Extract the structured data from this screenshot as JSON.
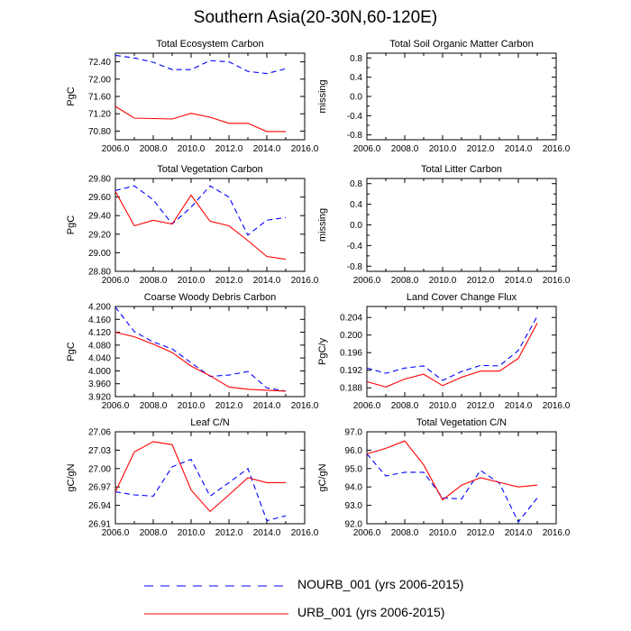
{
  "page_title": "Southern Asia(20-30N,60-120E)",
  "colors": {
    "nourb": "#0000ff",
    "urb": "#ff0000",
    "axis": "#000000"
  },
  "legend": [
    {
      "label": "NOURB_001 (yrs 2006-2015)",
      "color": "#0000ff",
      "style": "dashed"
    },
    {
      "label": "URB_001 (yrs 2006-2015)",
      "color": "#ff0000",
      "style": "solid"
    }
  ],
  "chart_data": [
    {
      "type": "line",
      "title": "Total Ecosystem Carbon",
      "ylabel": "PgC",
      "xlim": [
        2006,
        2016
      ],
      "ylim": [
        70.6,
        72.6
      ],
      "xticks": [
        2006,
        2008,
        2010,
        2012,
        2014,
        2016
      ],
      "xtick_labels": [
        "2006.0",
        "2008.0",
        "2010.0",
        "2012.0",
        "2014.0",
        "2016.0"
      ],
      "yticks": [
        70.8,
        71.2,
        71.6,
        72.0,
        72.4
      ],
      "ytick_labels": [
        "70.80",
        "71.20",
        "71.60",
        "72.00",
        "72.40"
      ],
      "x": [
        2006,
        2007,
        2008,
        2009,
        2010,
        2011,
        2012,
        2013,
        2014,
        2015
      ],
      "series": [
        {
          "name": "NOURB_001",
          "values": [
            72.55,
            72.49,
            72.39,
            72.22,
            72.22,
            72.43,
            72.4,
            72.18,
            72.13,
            72.24
          ]
        },
        {
          "name": "URB_001",
          "values": [
            71.37,
            71.1,
            71.09,
            71.08,
            71.21,
            71.12,
            70.98,
            70.98,
            70.79,
            70.79
          ]
        }
      ]
    },
    {
      "type": "line",
      "title": "Total Soil Organic Matter Carbon",
      "ylabel": "missing",
      "xlim": [
        2006,
        2016
      ],
      "ylim": [
        -0.9,
        0.9
      ],
      "xticks": [
        2006,
        2008,
        2010,
        2012,
        2014,
        2016
      ],
      "xtick_labels": [
        "2006.0",
        "2008.0",
        "2010.0",
        "2012.0",
        "2014.0",
        "2016.0"
      ],
      "yticks": [
        -0.8,
        -0.4,
        0,
        0.4,
        0.8
      ],
      "ytick_labels": [
        "-0.8",
        "-0.4",
        "0.0",
        "0.4",
        "0.8"
      ],
      "minor_yticks": [
        -0.6,
        -0.2,
        0.2,
        0.6
      ],
      "x": [],
      "series": []
    },
    {
      "type": "line",
      "title": "Total Vegetation Carbon",
      "ylabel": "PgC",
      "xlim": [
        2006,
        2016
      ],
      "ylim": [
        28.8,
        29.8
      ],
      "xticks": [
        2006,
        2008,
        2010,
        2012,
        2014,
        2016
      ],
      "xtick_labels": [
        "2006.0",
        "2008.0",
        "2010.0",
        "2012.0",
        "2014.0",
        "2016.0"
      ],
      "yticks": [
        28.8,
        29.0,
        29.2,
        29.4,
        29.6,
        29.8
      ],
      "ytick_labels": [
        "28.80",
        "29.00",
        "29.20",
        "29.40",
        "29.60",
        "29.80"
      ],
      "x": [
        2006,
        2007,
        2008,
        2009,
        2010,
        2011,
        2012,
        2013,
        2014,
        2015
      ],
      "series": [
        {
          "name": "NOURB_001",
          "values": [
            29.67,
            29.72,
            29.57,
            29.31,
            29.49,
            29.72,
            29.6,
            29.19,
            29.35,
            29.38
          ]
        },
        {
          "name": "URB_001",
          "values": [
            29.66,
            29.29,
            29.35,
            29.31,
            29.62,
            29.34,
            29.29,
            29.13,
            28.96,
            28.93
          ]
        }
      ]
    },
    {
      "type": "line",
      "title": "Total Litter Carbon",
      "ylabel": "missing",
      "xlim": [
        2006,
        2016
      ],
      "ylim": [
        -0.9,
        0.9
      ],
      "xticks": [
        2006,
        2008,
        2010,
        2012,
        2014,
        2016
      ],
      "xtick_labels": [
        "2006.0",
        "2008.0",
        "2010.0",
        "2012.0",
        "2014.0",
        "2016.0"
      ],
      "yticks": [
        -0.8,
        -0.4,
        0,
        0.4,
        0.8
      ],
      "ytick_labels": [
        "-0.8",
        "-0.4",
        "0.0",
        "0.4",
        "0.8"
      ],
      "minor_yticks": [
        -0.6,
        -0.2,
        0.2,
        0.6
      ],
      "x": [],
      "series": []
    },
    {
      "type": "line",
      "title": "Coarse Woody Debris Carbon",
      "ylabel": "PgC",
      "xlim": [
        2006,
        2016
      ],
      "ylim": [
        3.92,
        4.2
      ],
      "xticks": [
        2006,
        2008,
        2010,
        2012,
        2014,
        2016
      ],
      "xtick_labels": [
        "2006.0",
        "2008.0",
        "2010.0",
        "2012.0",
        "2014.0",
        "2016.0"
      ],
      "yticks": [
        3.92,
        3.96,
        4.0,
        4.04,
        4.08,
        4.12,
        4.16,
        4.2
      ],
      "ytick_labels": [
        "3.920",
        "3.960",
        "4.000",
        "4.040",
        "4.080",
        "4.120",
        "4.160",
        "4.200"
      ],
      "x": [
        2006,
        2007,
        2008,
        2009,
        2010,
        2011,
        2012,
        2013,
        2014,
        2015
      ],
      "series": [
        {
          "name": "NOURB_001",
          "values": [
            4.198,
            4.122,
            4.09,
            4.068,
            4.025,
            3.983,
            3.987,
            3.998,
            3.947,
            3.937
          ]
        },
        {
          "name": "URB_001",
          "values": [
            4.12,
            4.106,
            4.083,
            4.057,
            4.015,
            3.985,
            3.95,
            3.943,
            3.94,
            3.937
          ]
        }
      ]
    },
    {
      "type": "line",
      "title": "Land Cover Change Flux",
      "ylabel": "PgC/y",
      "xlim": [
        2006,
        2016
      ],
      "ylim": [
        0.186,
        0.2065
      ],
      "xticks": [
        2006,
        2008,
        2010,
        2012,
        2014,
        2016
      ],
      "xtick_labels": [
        "2006.0",
        "2008.0",
        "2010.0",
        "2012.0",
        "2014.0",
        "2016.0"
      ],
      "yticks": [
        0.188,
        0.192,
        0.196,
        0.2,
        0.204
      ],
      "ytick_labels": [
        "0.188",
        "0.192",
        "0.196",
        "0.200",
        "0.204"
      ],
      "x": [
        2006,
        2007,
        2008,
        2009,
        2010,
        2011,
        2012,
        2013,
        2014,
        2015
      ],
      "series": [
        {
          "name": "NOURB_001",
          "values": [
            0.1925,
            0.1913,
            0.1925,
            0.193,
            0.1897,
            0.1917,
            0.1931,
            0.193,
            0.1965,
            0.2043
          ]
        },
        {
          "name": "URB_001",
          "values": [
            0.1894,
            0.1882,
            0.19,
            0.1911,
            0.1885,
            0.1904,
            0.1918,
            0.1918,
            0.1947,
            0.2027
          ]
        }
      ]
    },
    {
      "type": "line",
      "title": "Leaf C/N",
      "ylabel": "gC/gN",
      "xlim": [
        2006,
        2016
      ],
      "ylim": [
        26.91,
        27.06
      ],
      "xticks": [
        2006,
        2008,
        2010,
        2012,
        2014,
        2016
      ],
      "xtick_labels": [
        "2006.0",
        "2008.0",
        "2010.0",
        "2012.0",
        "2014.0",
        "2016.0"
      ],
      "yticks": [
        26.91,
        26.94,
        26.97,
        27.0,
        27.03,
        27.06
      ],
      "ytick_labels": [
        "26.91",
        "26.94",
        "26.97",
        "27.00",
        "27.03",
        "27.06"
      ],
      "x": [
        2006,
        2007,
        2008,
        2009,
        2010,
        2011,
        2012,
        2013,
        2014,
        2015
      ],
      "series": [
        {
          "name": "NOURB_001",
          "values": [
            26.962,
            26.957,
            26.955,
            27.003,
            27.015,
            26.955,
            26.977,
            27.0,
            26.915,
            26.923
          ]
        },
        {
          "name": "URB_001",
          "values": [
            26.962,
            27.027,
            27.044,
            27.039,
            26.965,
            26.93,
            26.957,
            26.985,
            26.977,
            26.977
          ]
        }
      ]
    },
    {
      "type": "line",
      "title": "Total Vegetation C/N",
      "ylabel": "gC/gN",
      "xlim": [
        2006,
        2016
      ],
      "ylim": [
        92.0,
        97.0
      ],
      "xticks": [
        2006,
        2008,
        2010,
        2012,
        2014,
        2016
      ],
      "xtick_labels": [
        "2006.0",
        "2008.0",
        "2010.0",
        "2012.0",
        "2014.0",
        "2016.0"
      ],
      "yticks": [
        92.0,
        93.0,
        94.0,
        95.0,
        96.0,
        97.0
      ],
      "ytick_labels": [
        "92.0",
        "93.0",
        "94.0",
        "95.0",
        "96.0",
        "97.0"
      ],
      "x": [
        2006,
        2007,
        2008,
        2009,
        2010,
        2011,
        2012,
        2013,
        2014,
        2015
      ],
      "series": [
        {
          "name": "NOURB_001",
          "values": [
            95.8,
            94.6,
            94.8,
            94.8,
            93.4,
            93.35,
            94.9,
            94.2,
            92.1,
            93.4
          ]
        },
        {
          "name": "URB_001",
          "values": [
            95.8,
            96.1,
            96.5,
            95.2,
            93.3,
            94.1,
            94.5,
            94.25,
            94.0,
            94.1
          ]
        }
      ]
    }
  ]
}
